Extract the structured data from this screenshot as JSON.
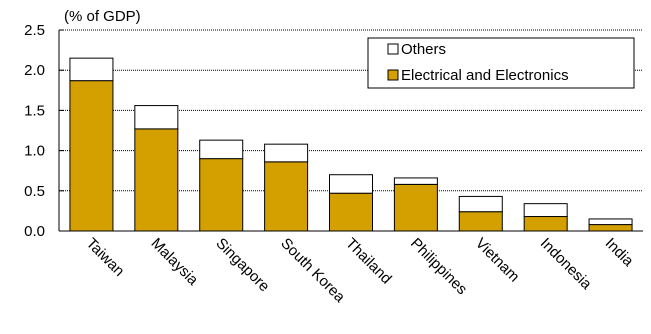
{
  "chart_data": {
    "type": "bar",
    "stacked": true,
    "unit_label": "(% of GDP)",
    "categories": [
      "Taiwan",
      "Malaysia",
      "Singapore",
      "South Korea",
      "Thailand",
      "Philippines",
      "Vietnam",
      "Indonesia",
      "India"
    ],
    "series": [
      {
        "name": "Electrical and Electronics",
        "values": [
          1.87,
          1.27,
          0.9,
          0.86,
          0.47,
          0.58,
          0.24,
          0.18,
          0.08
        ],
        "color": "#d4a000"
      },
      {
        "name": "Others",
        "values": [
          0.28,
          0.29,
          0.23,
          0.22,
          0.23,
          0.08,
          0.19,
          0.16,
          0.07
        ],
        "color": "#ffffff"
      }
    ],
    "ylim": [
      0,
      2.5
    ],
    "yticks": [
      "0.0",
      "0.5",
      "1.0",
      "1.5",
      "2.0",
      "2.5"
    ],
    "grid": true,
    "legend_placement": "top-right"
  }
}
